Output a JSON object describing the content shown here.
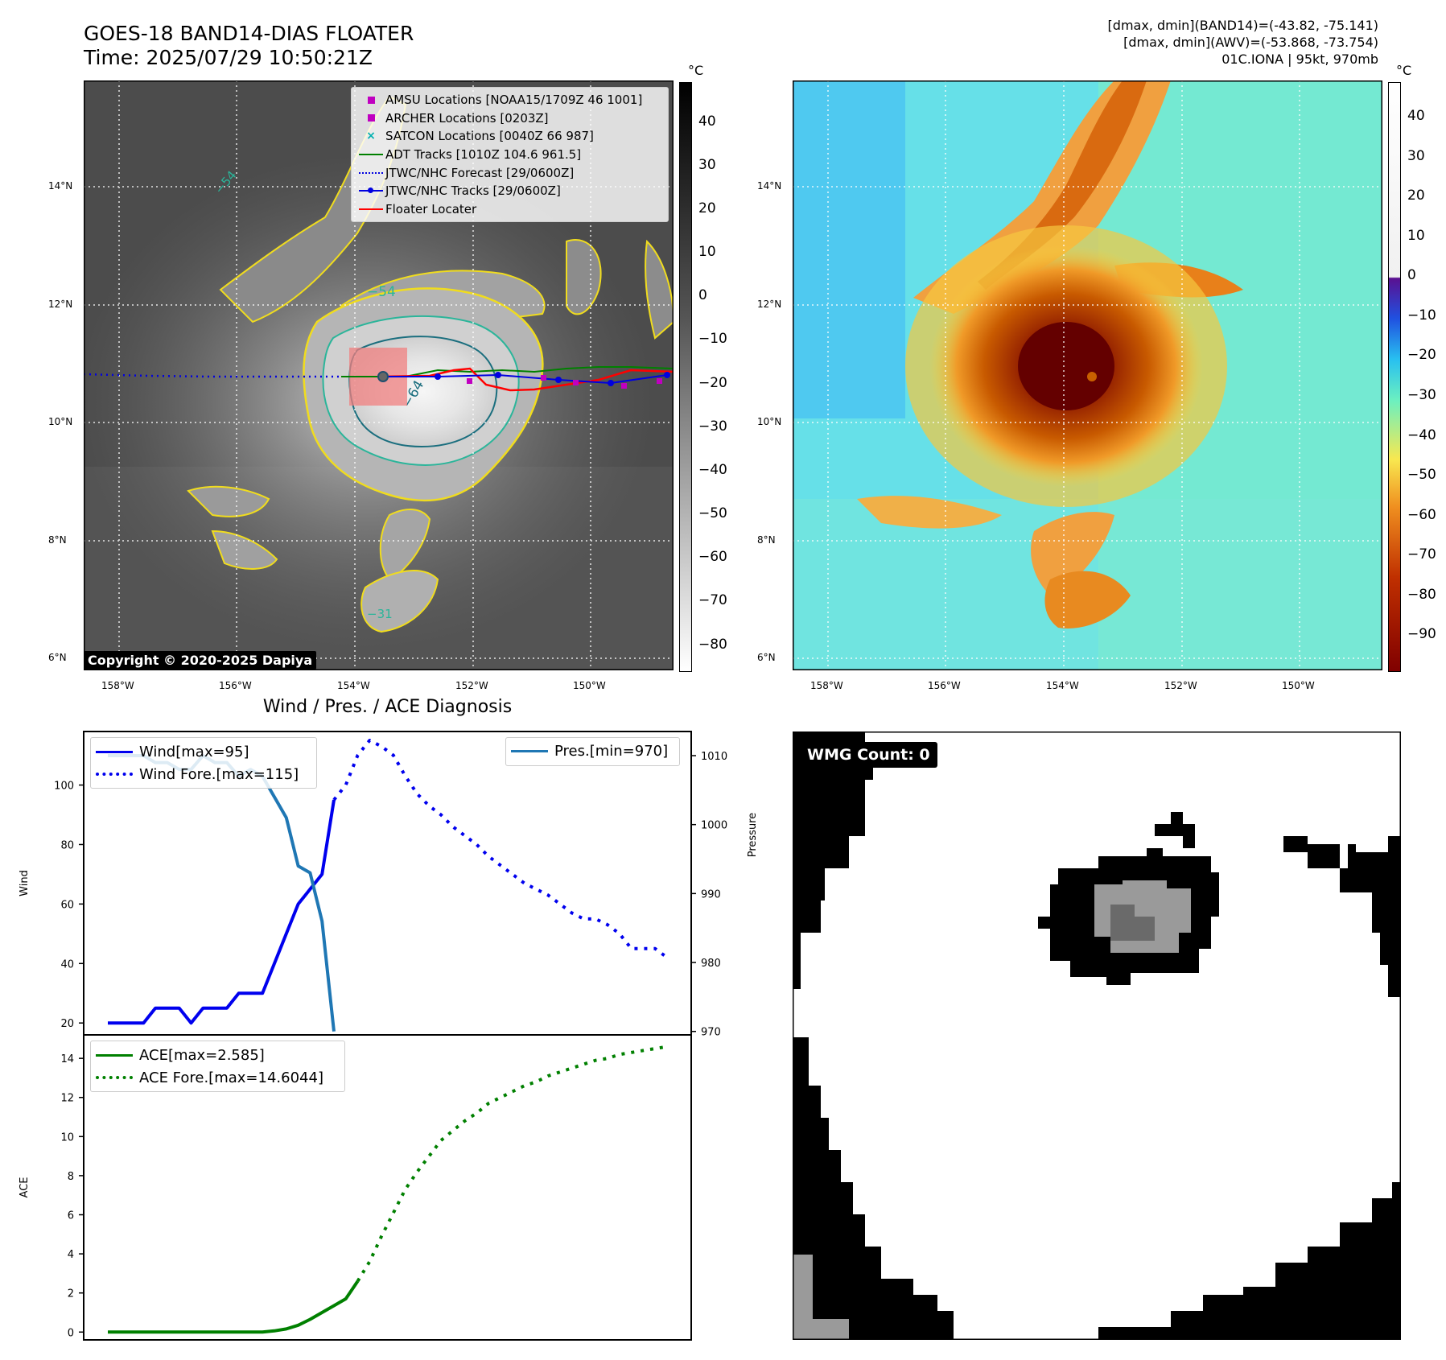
{
  "header": {
    "title_line1": "GOES-18 BAND14-DIAS FLOATER",
    "title_line2": "Time: 2025/07/29 10:50:21Z",
    "info_line1": "[dmax, dmin](BAND14)=(-43.82, -75.141)",
    "info_line2": "[dmax, dmin](AWV)=(-53.868, -73.754)",
    "info_line3": "01C.IONA | 95kt, 970mb"
  },
  "map_axes": {
    "lon_labels": [
      "158°W",
      "156°W",
      "154°W",
      "152°W",
      "150°W"
    ],
    "lat_labels": [
      "14°N",
      "12°N",
      "10°N",
      "8°N",
      "6°N"
    ],
    "lon_range": [
      -158.6,
      -148.6
    ],
    "lat_range": [
      5.8,
      15.8
    ]
  },
  "ir_panel": {
    "colorbar_unit": "°C",
    "colorbar_ticks": [
      "40",
      "30",
      "20",
      "10",
      "0",
      "−10",
      "−20",
      "−30",
      "−40",
      "−50",
      "−60",
      "−70",
      "−80"
    ],
    "contour_labels": [
      "−54",
      "−64",
      "−54",
      "−31"
    ],
    "copyright": "Copyright © 2020-2025 Dapiya",
    "legend": [
      {
        "label": "AMSU Locations [NOAA15/1709Z 46 1001]",
        "color": "#c000c0",
        "marker": "square"
      },
      {
        "label": "ARCHER Locations [0203Z]",
        "color": "#c000c0",
        "marker": "square"
      },
      {
        "label": "SATCON Locations [0040Z 66 987]",
        "color": "#00b0b0",
        "marker": "x"
      },
      {
        "label": "ADT Tracks [1010Z 104.6 961.5]",
        "color": "#008000",
        "marker": "line"
      },
      {
        "label": "JTWC/NHC Forecast [29/0600Z]",
        "color": "#0000e0",
        "marker": "dotted"
      },
      {
        "label": "JTWC/NHC Tracks [29/0600Z]",
        "color": "#0000e0",
        "marker": "line-dot"
      },
      {
        "label": "Floater Locater",
        "color": "#ff0000",
        "marker": "line"
      }
    ]
  },
  "awv_panel": {
    "colorbar_unit": "°C",
    "colorbar_ticks": [
      "40",
      "30",
      "20",
      "10",
      "0",
      "−10",
      "−20",
      "−30",
      "−40",
      "−50",
      "−60",
      "−70",
      "−80",
      "−90"
    ]
  },
  "chart_data": [
    {
      "type": "line",
      "title": "Wind / Pres. / ACE Diagnosis",
      "ylabel": "Wind",
      "y2label": "Pressure",
      "ylim": [
        16,
        118
      ],
      "y2lim": [
        969.5,
        1013.5
      ],
      "y_ticks": [
        "20",
        "40",
        "60",
        "80",
        "100"
      ],
      "y2_ticks": [
        "970",
        "980",
        "990",
        "1000",
        "1010"
      ],
      "series": [
        {
          "name": "Wind[max=95]",
          "style": "solid",
          "color": "#0000ee",
          "values": [
            20,
            20,
            20,
            20,
            25,
            25,
            25,
            20,
            25,
            25,
            25,
            30,
            30,
            30,
            40,
            50,
            60,
            65,
            70,
            95
          ]
        },
        {
          "name": "Wind Fore.[max=115]",
          "style": "dotted",
          "color": "#0000ee",
          "values": [
            95,
            100,
            110,
            115,
            113,
            110,
            103,
            97,
            93,
            90,
            86,
            83,
            80,
            76,
            73,
            70,
            67,
            65,
            63,
            60,
            57,
            55,
            55,
            53,
            50,
            45,
            45,
            45,
            42
          ],
          "x_start": 19
        },
        {
          "name": "Pres.[min=970]",
          "style": "solid",
          "color": "#1f77b4",
          "axis": "y2",
          "values": [
            1010,
            1010,
            1010,
            1010,
            1009,
            1009,
            1008,
            1008,
            1010,
            1009,
            1009,
            1007,
            1008,
            1007,
            1004,
            1001,
            994,
            993,
            986,
            970
          ]
        }
      ]
    },
    {
      "type": "line",
      "ylabel": "ACE",
      "ylim": [
        -0.4,
        15.2
      ],
      "y_ticks": [
        "0",
        "2",
        "4",
        "6",
        "8",
        "10",
        "12",
        "14"
      ],
      "series": [
        {
          "name": "ACE[max=2.585]",
          "style": "solid",
          "color": "#008000",
          "values": [
            0,
            0,
            0,
            0,
            0,
            0,
            0,
            0,
            0,
            0,
            0,
            0,
            0,
            0,
            0.06,
            0.16,
            0.35,
            0.65,
            1.0,
            1.35,
            1.7,
            2.6
          ]
        },
        {
          "name": "ACE Fore.[max=14.6044]",
          "style": "dotted",
          "color": "#008000",
          "values": [
            2.6,
            3.6,
            4.9,
            6.1,
            7.3,
            8.2,
            9.0,
            9.8,
            10.3,
            10.8,
            11.2,
            11.7,
            12.0,
            12.3,
            12.6,
            12.8,
            13.1,
            13.3,
            13.5,
            13.7,
            13.9,
            14.0,
            14.2,
            14.3,
            14.4,
            14.5,
            14.6
          ],
          "x_start": 21
        }
      ]
    }
  ],
  "wmg_panel": {
    "label": "WMG Count: 0"
  }
}
